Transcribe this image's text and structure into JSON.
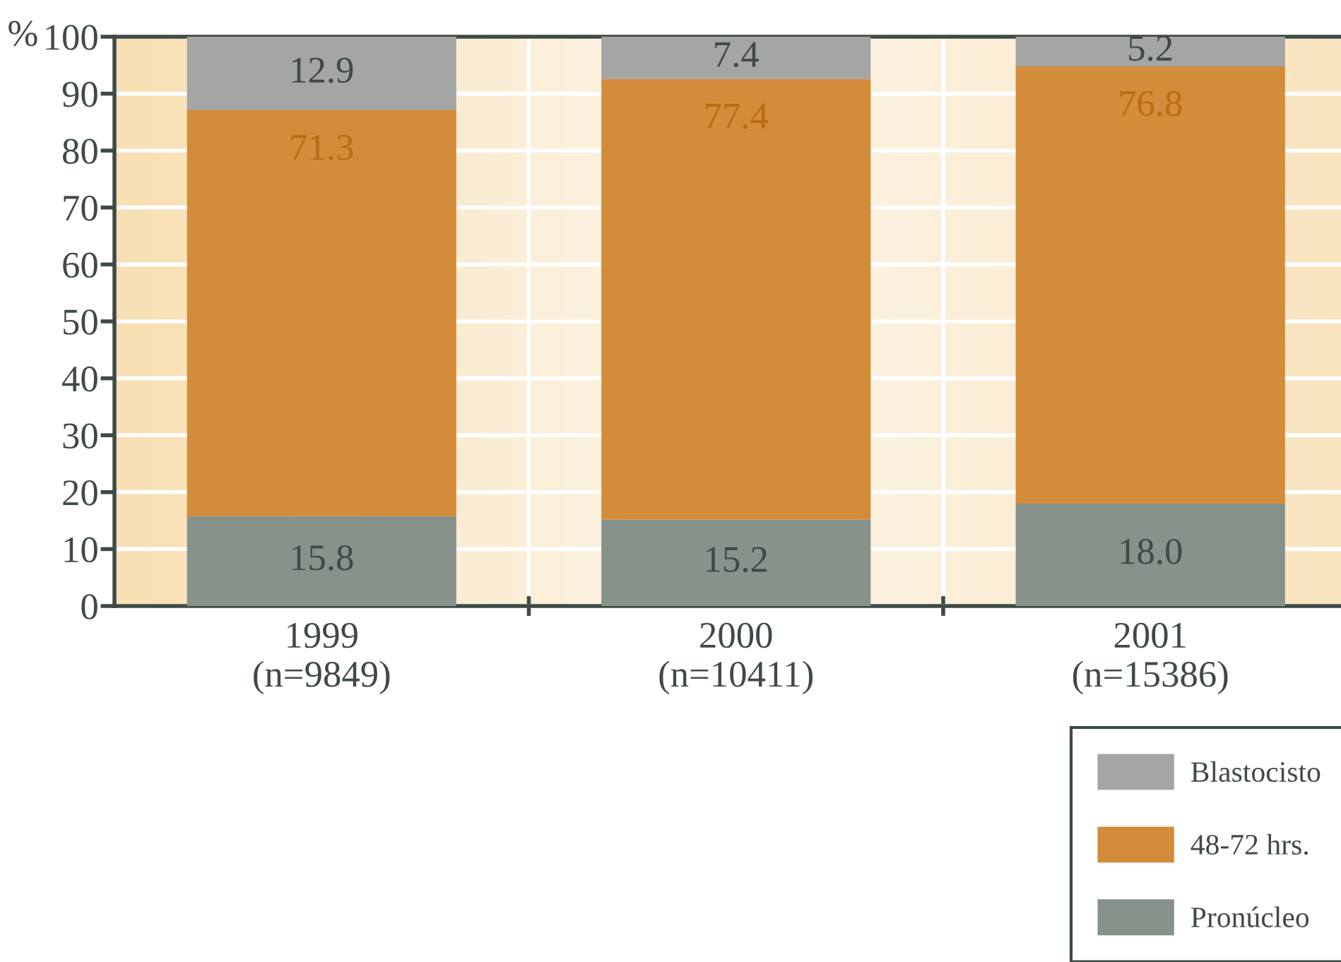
{
  "chart_data": {
    "type": "bar",
    "stacked": true,
    "ylabel": "%",
    "categories": [
      "1999\n(n=9849)",
      "2000\n(n=10411)",
      "2001\n(n=15386)"
    ],
    "series": [
      {
        "name": "Pronúcleo",
        "color": "#87928b",
        "values": [
          15.8,
          15.2,
          18.0
        ],
        "value_labels": [
          "15.8",
          "15.2",
          "18.0"
        ]
      },
      {
        "name": "48-72 hrs.",
        "color": "#d38c3a",
        "values": [
          71.3,
          77.4,
          76.8
        ],
        "value_labels": [
          "71.3",
          "77.4",
          "76.8"
        ]
      },
      {
        "name": "Blastocisto",
        "color": "#a3a6a4",
        "values": [
          12.9,
          7.4,
          5.2
        ],
        "value_labels": [
          "12.9",
          "7.4",
          "5.2"
        ]
      }
    ],
    "ylim": [
      0,
      100
    ],
    "yticks": [
      0,
      10,
      20,
      30,
      40,
      50,
      60,
      70,
      80,
      90,
      100
    ],
    "grid": true,
    "legend": "bottom right"
  }
}
